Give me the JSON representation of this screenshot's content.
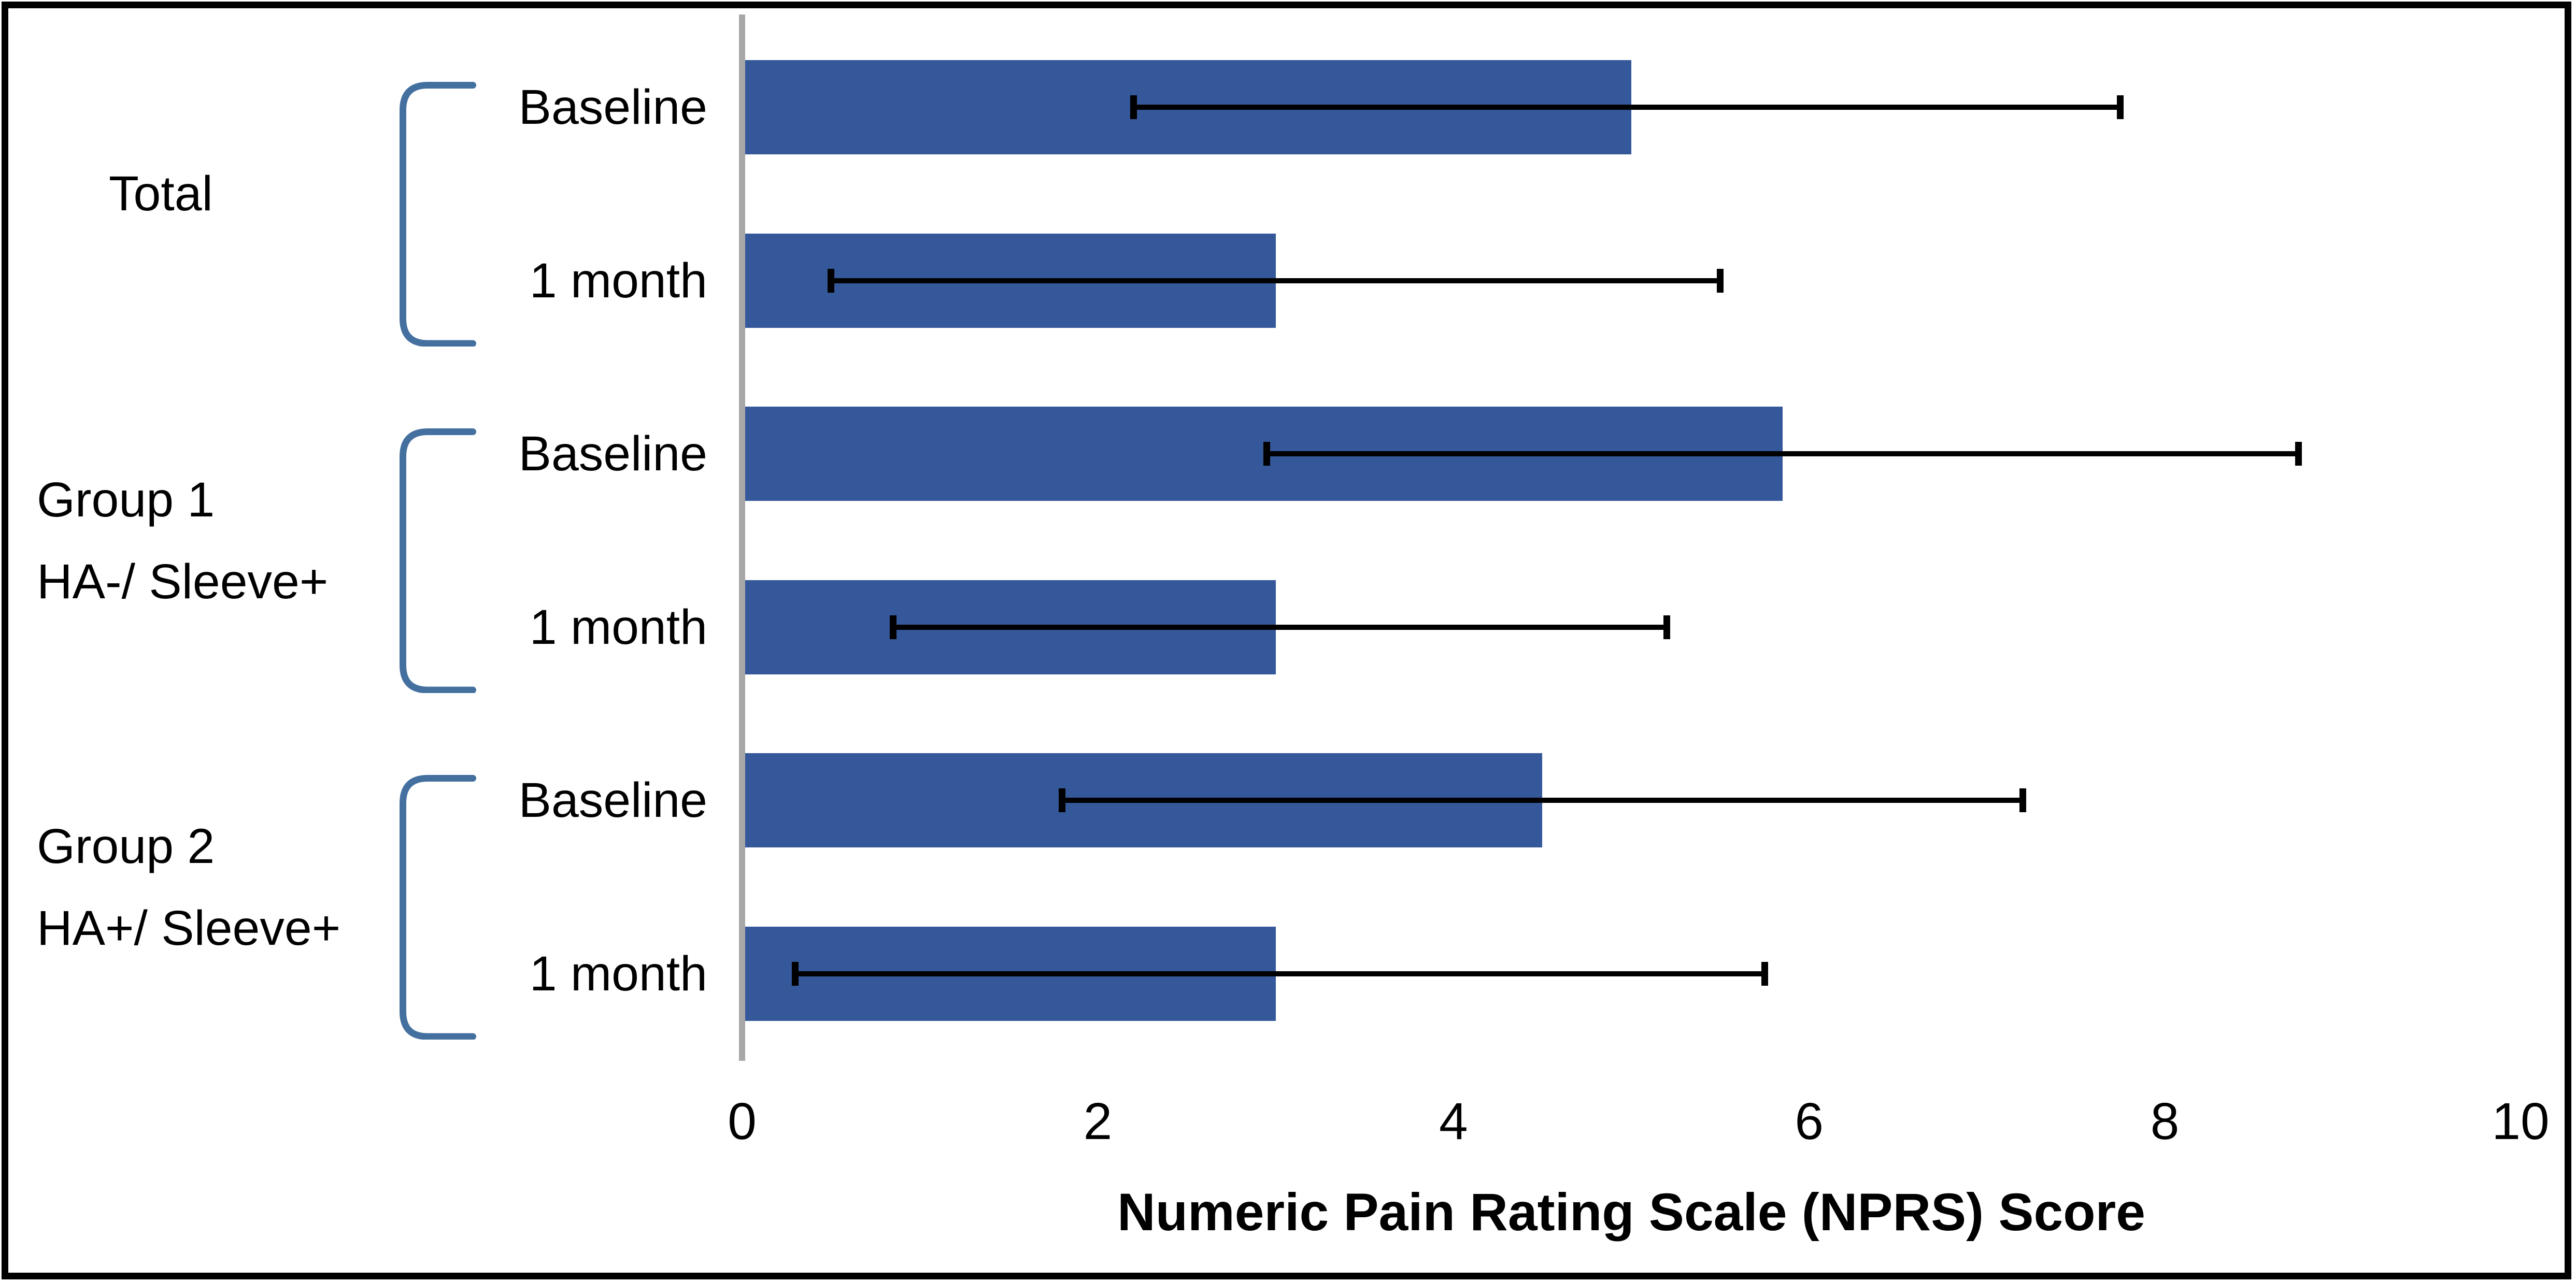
{
  "chart_data": {
    "type": "bar",
    "orientation": "horizontal",
    "title": "",
    "xlabel": "Numeric Pain Rating Scale (NPRS) Score",
    "ylabel": "",
    "xlim": [
      0,
      10
    ],
    "xticks": [
      0,
      2,
      4,
      6,
      8,
      10
    ],
    "grid": false,
    "legend": false,
    "error_bars": true,
    "colors": {
      "bar": "#35589A",
      "bracket": "#4470A0",
      "zero_axis_line": "#A7A7A7",
      "error_bar": "#000000",
      "text": "#000000",
      "border": "#000000",
      "background": "#FFFFFF"
    },
    "groups": [
      {
        "name": "Total",
        "label_lines": [
          "Total"
        ],
        "rows": [
          {
            "label": "Baseline",
            "value": 5.0,
            "whisker_low": 2.2,
            "whisker_high": 7.75
          },
          {
            "label": "1 month",
            "value": 3.0,
            "whisker_low": 0.5,
            "whisker_high": 5.5
          }
        ]
      },
      {
        "name": "Group 1 HA-/ Sleeve+",
        "label_lines": [
          "Group 1",
          "HA-/ Sleeve+"
        ],
        "rows": [
          {
            "label": "Baseline",
            "value": 5.85,
            "whisker_low": 2.95,
            "whisker_high": 8.75
          },
          {
            "label": "1 month",
            "value": 3.0,
            "whisker_low": 0.85,
            "whisker_high": 5.2
          }
        ]
      },
      {
        "name": "Group 2 HA+/ Sleeve+",
        "label_lines": [
          "Group 2",
          "HA+/ Sleeve+"
        ],
        "rows": [
          {
            "label": "Baseline",
            "value": 4.5,
            "whisker_low": 1.8,
            "whisker_high": 7.2
          },
          {
            "label": "1 month",
            "value": 3.0,
            "whisker_low": 0.3,
            "whisker_high": 5.75
          }
        ]
      }
    ]
  }
}
